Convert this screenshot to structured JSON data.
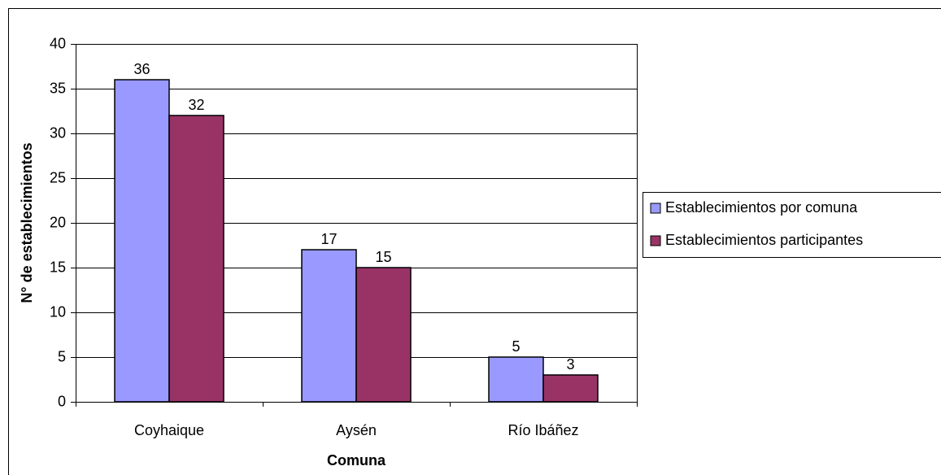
{
  "chart_data": {
    "type": "bar",
    "x_label": "Comuna",
    "y_label": "N° de establecimientos",
    "categories": [
      "Coyhaique",
      "Aysén",
      "Río Ibáñez"
    ],
    "series": [
      {
        "name": "Establecimientos por comuna",
        "color": "#9999ff",
        "values": [
          36,
          17,
          5
        ]
      },
      {
        "name": "Establecimientos participantes",
        "color": "#993366",
        "values": [
          32,
          15,
          3
        ]
      }
    ],
    "ylim": [
      0,
      40
    ],
    "yticks": [
      0,
      5,
      10,
      15,
      20,
      25,
      30,
      35,
      40
    ],
    "grid": true,
    "legend": "right"
  }
}
